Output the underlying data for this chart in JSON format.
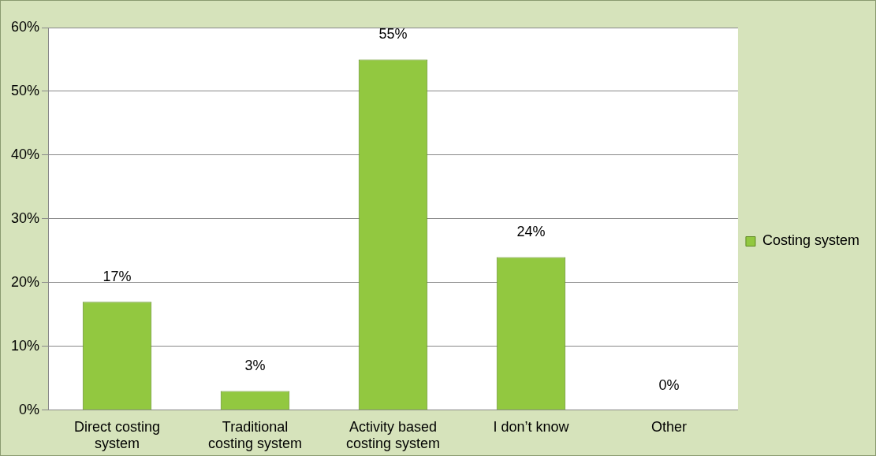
{
  "chart_data": {
    "type": "bar",
    "categories": [
      "Direct costing system",
      "Traditional costing system",
      "Activity based costing system",
      "I don’t know",
      "Other"
    ],
    "series": [
      {
        "name": "Costing system",
        "color": "#92c840",
        "values": [
          17,
          3,
          55,
          24,
          0
        ],
        "value_labels": [
          "17%",
          "3%",
          "55%",
          "24%",
          "0%"
        ]
      }
    ],
    "ylim": [
      0,
      60
    ],
    "yticks": [
      {
        "value": 0,
        "label": "0%"
      },
      {
        "value": 10,
        "label": "10%"
      },
      {
        "value": 20,
        "label": "20%"
      },
      {
        "value": 30,
        "label": "30%"
      },
      {
        "value": 40,
        "label": "40%"
      },
      {
        "value": 50,
        "label": "50%"
      },
      {
        "value": 60,
        "label": "60%"
      }
    ],
    "grid": "y",
    "legend": "right"
  }
}
